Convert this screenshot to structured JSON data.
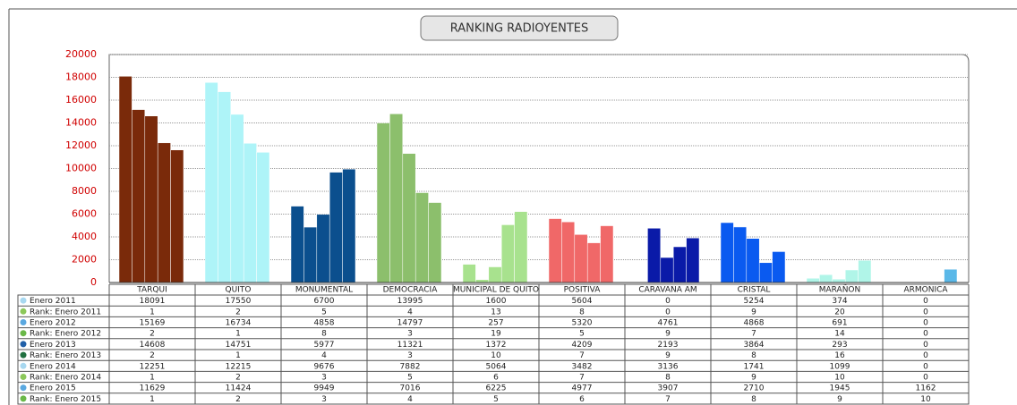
{
  "chart_data": {
    "type": "bar",
    "title": "RANKING RADIOYENTES",
    "categories": [
      "TARQUI",
      "QUITO",
      "MONUMENTAL",
      "DEMOCRACIA",
      "MUNICIPAL DE QUITO",
      "POSITIVA",
      "CARAVANA AM",
      "CRISTAL",
      "MARAÑON",
      "ARMONICA"
    ],
    "colors": [
      "#7a2a0a",
      "#aef4f8",
      "#0b4f8e",
      "#8cbf6c",
      "#a8e28e",
      "#f06868",
      "#0a1aa8",
      "#0a5af0",
      "#b0f5e8",
      "#5ab8e8"
    ],
    "ylim": [
      0,
      20000
    ],
    "yticks": [
      0,
      2000,
      4000,
      6000,
      8000,
      10000,
      12000,
      14000,
      16000,
      18000,
      20000
    ],
    "grid": true,
    "series": [
      {
        "name": "Enero 2011",
        "color": "#a8d8f0",
        "values": [
          18091,
          17550,
          6700,
          13995,
          1600,
          5604,
          0,
          5254,
          374,
          0
        ],
        "rank_name": "Rank: Enero 2011",
        "rank_color": "#8cc85a",
        "ranks": [
          1,
          2,
          5,
          4,
          13,
          8,
          0,
          9,
          20,
          0
        ]
      },
      {
        "name": "Enero 2012",
        "color": "#5aa8e0",
        "values": [
          15169,
          16734,
          4858,
          14797,
          257,
          5320,
          4761,
          4868,
          691,
          0
        ],
        "rank_name": "Rank: Enero 2012",
        "rank_color": "#6ab848",
        "ranks": [
          2,
          1,
          8,
          3,
          19,
          5,
          9,
          7,
          14,
          0
        ]
      },
      {
        "name": "Enero 2013",
        "color": "#2060a8",
        "values": [
          14608,
          14751,
          5977,
          11321,
          1372,
          4209,
          2193,
          3864,
          293,
          0
        ],
        "rank_name": "Rank: Enero 2013",
        "rank_color": "#207040",
        "ranks": [
          2,
          1,
          4,
          3,
          10,
          7,
          9,
          8,
          16,
          0
        ]
      },
      {
        "name": "Enero 2014",
        "color": "#a8d8f0",
        "values": [
          12251,
          12215,
          9676,
          7882,
          5064,
          3482,
          3136,
          1741,
          1099,
          0
        ],
        "rank_name": "Rank: Enero 2014",
        "rank_color": "#8cc85a",
        "ranks": [
          1,
          2,
          3,
          5,
          6,
          7,
          8,
          9,
          10,
          0
        ]
      },
      {
        "name": "Enero 2015",
        "color": "#5aa8e0",
        "values": [
          11629,
          11424,
          9949,
          7016,
          6225,
          4977,
          3907,
          2710,
          1945,
          1162
        ],
        "rank_name": "Rank: Enero 2015",
        "rank_color": "#6ab848",
        "ranks": [
          1,
          2,
          3,
          4,
          5,
          6,
          7,
          8,
          9,
          10
        ]
      }
    ]
  }
}
